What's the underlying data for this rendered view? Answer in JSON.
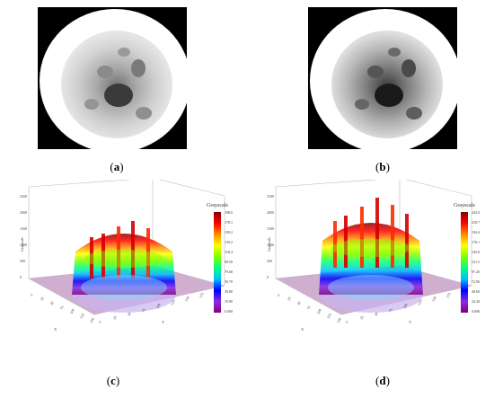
{
  "panels": {
    "a": {
      "caption_open": "(",
      "caption_letter": "a",
      "caption_close": ")"
    },
    "b": {
      "caption_open": "(",
      "caption_letter": "b",
      "caption_close": ")"
    },
    "c": {
      "caption_open": "(",
      "caption_letter": "c",
      "caption_close": ")",
      "legend_title": "Grayscale",
      "legend_ticks": [
        "198.0",
        "178.1",
        "159.2",
        "139.2",
        "118.4",
        "99.50",
        "79.60",
        "59.70",
        "39.80",
        "19.90",
        "0.000"
      ],
      "z_axis_label": "Grayscale",
      "z_ticks": [
        "2500",
        "2000",
        "1500",
        "1000",
        "500",
        "0"
      ],
      "x_ticks": [
        "0",
        "25",
        "50",
        "75",
        "100",
        "125",
        "150"
      ],
      "y_ticks": [
        "0",
        "25",
        "50",
        "75",
        "100",
        "125",
        "150",
        "175",
        "200"
      ],
      "y_axis_label": "Y",
      "x_axis_label": "X"
    },
    "d": {
      "caption_open": "(",
      "caption_letter": "d",
      "caption_close": ")",
      "legend_title": "Grayscale",
      "legend_ticks": [
        "243.0",
        "218.7",
        "194.4",
        "170.1",
        "145.8",
        "121.5",
        "97.20",
        "72.90",
        "48.60",
        "24.30",
        "0.000"
      ],
      "z_axis_label": "Grayscale",
      "z_ticks": [
        "2500",
        "2000",
        "1500",
        "1000",
        "500",
        "0"
      ],
      "x_ticks": [
        "0",
        "25",
        "50",
        "75",
        "100",
        "125",
        "150"
      ],
      "y_ticks": [
        "0",
        "25",
        "50",
        "75",
        "100",
        "125",
        "150",
        "175",
        "200"
      ],
      "y_axis_label": "Y",
      "x_axis_label": "X"
    }
  },
  "colors": {
    "floor": "#c8a0c8",
    "legend_gradient": [
      "#8b0000",
      "#ff0000",
      "#ff8c00",
      "#ffff00",
      "#7fff00",
      "#00ff7f",
      "#00bfff",
      "#0000ff",
      "#8a2be2",
      "#800080"
    ]
  }
}
